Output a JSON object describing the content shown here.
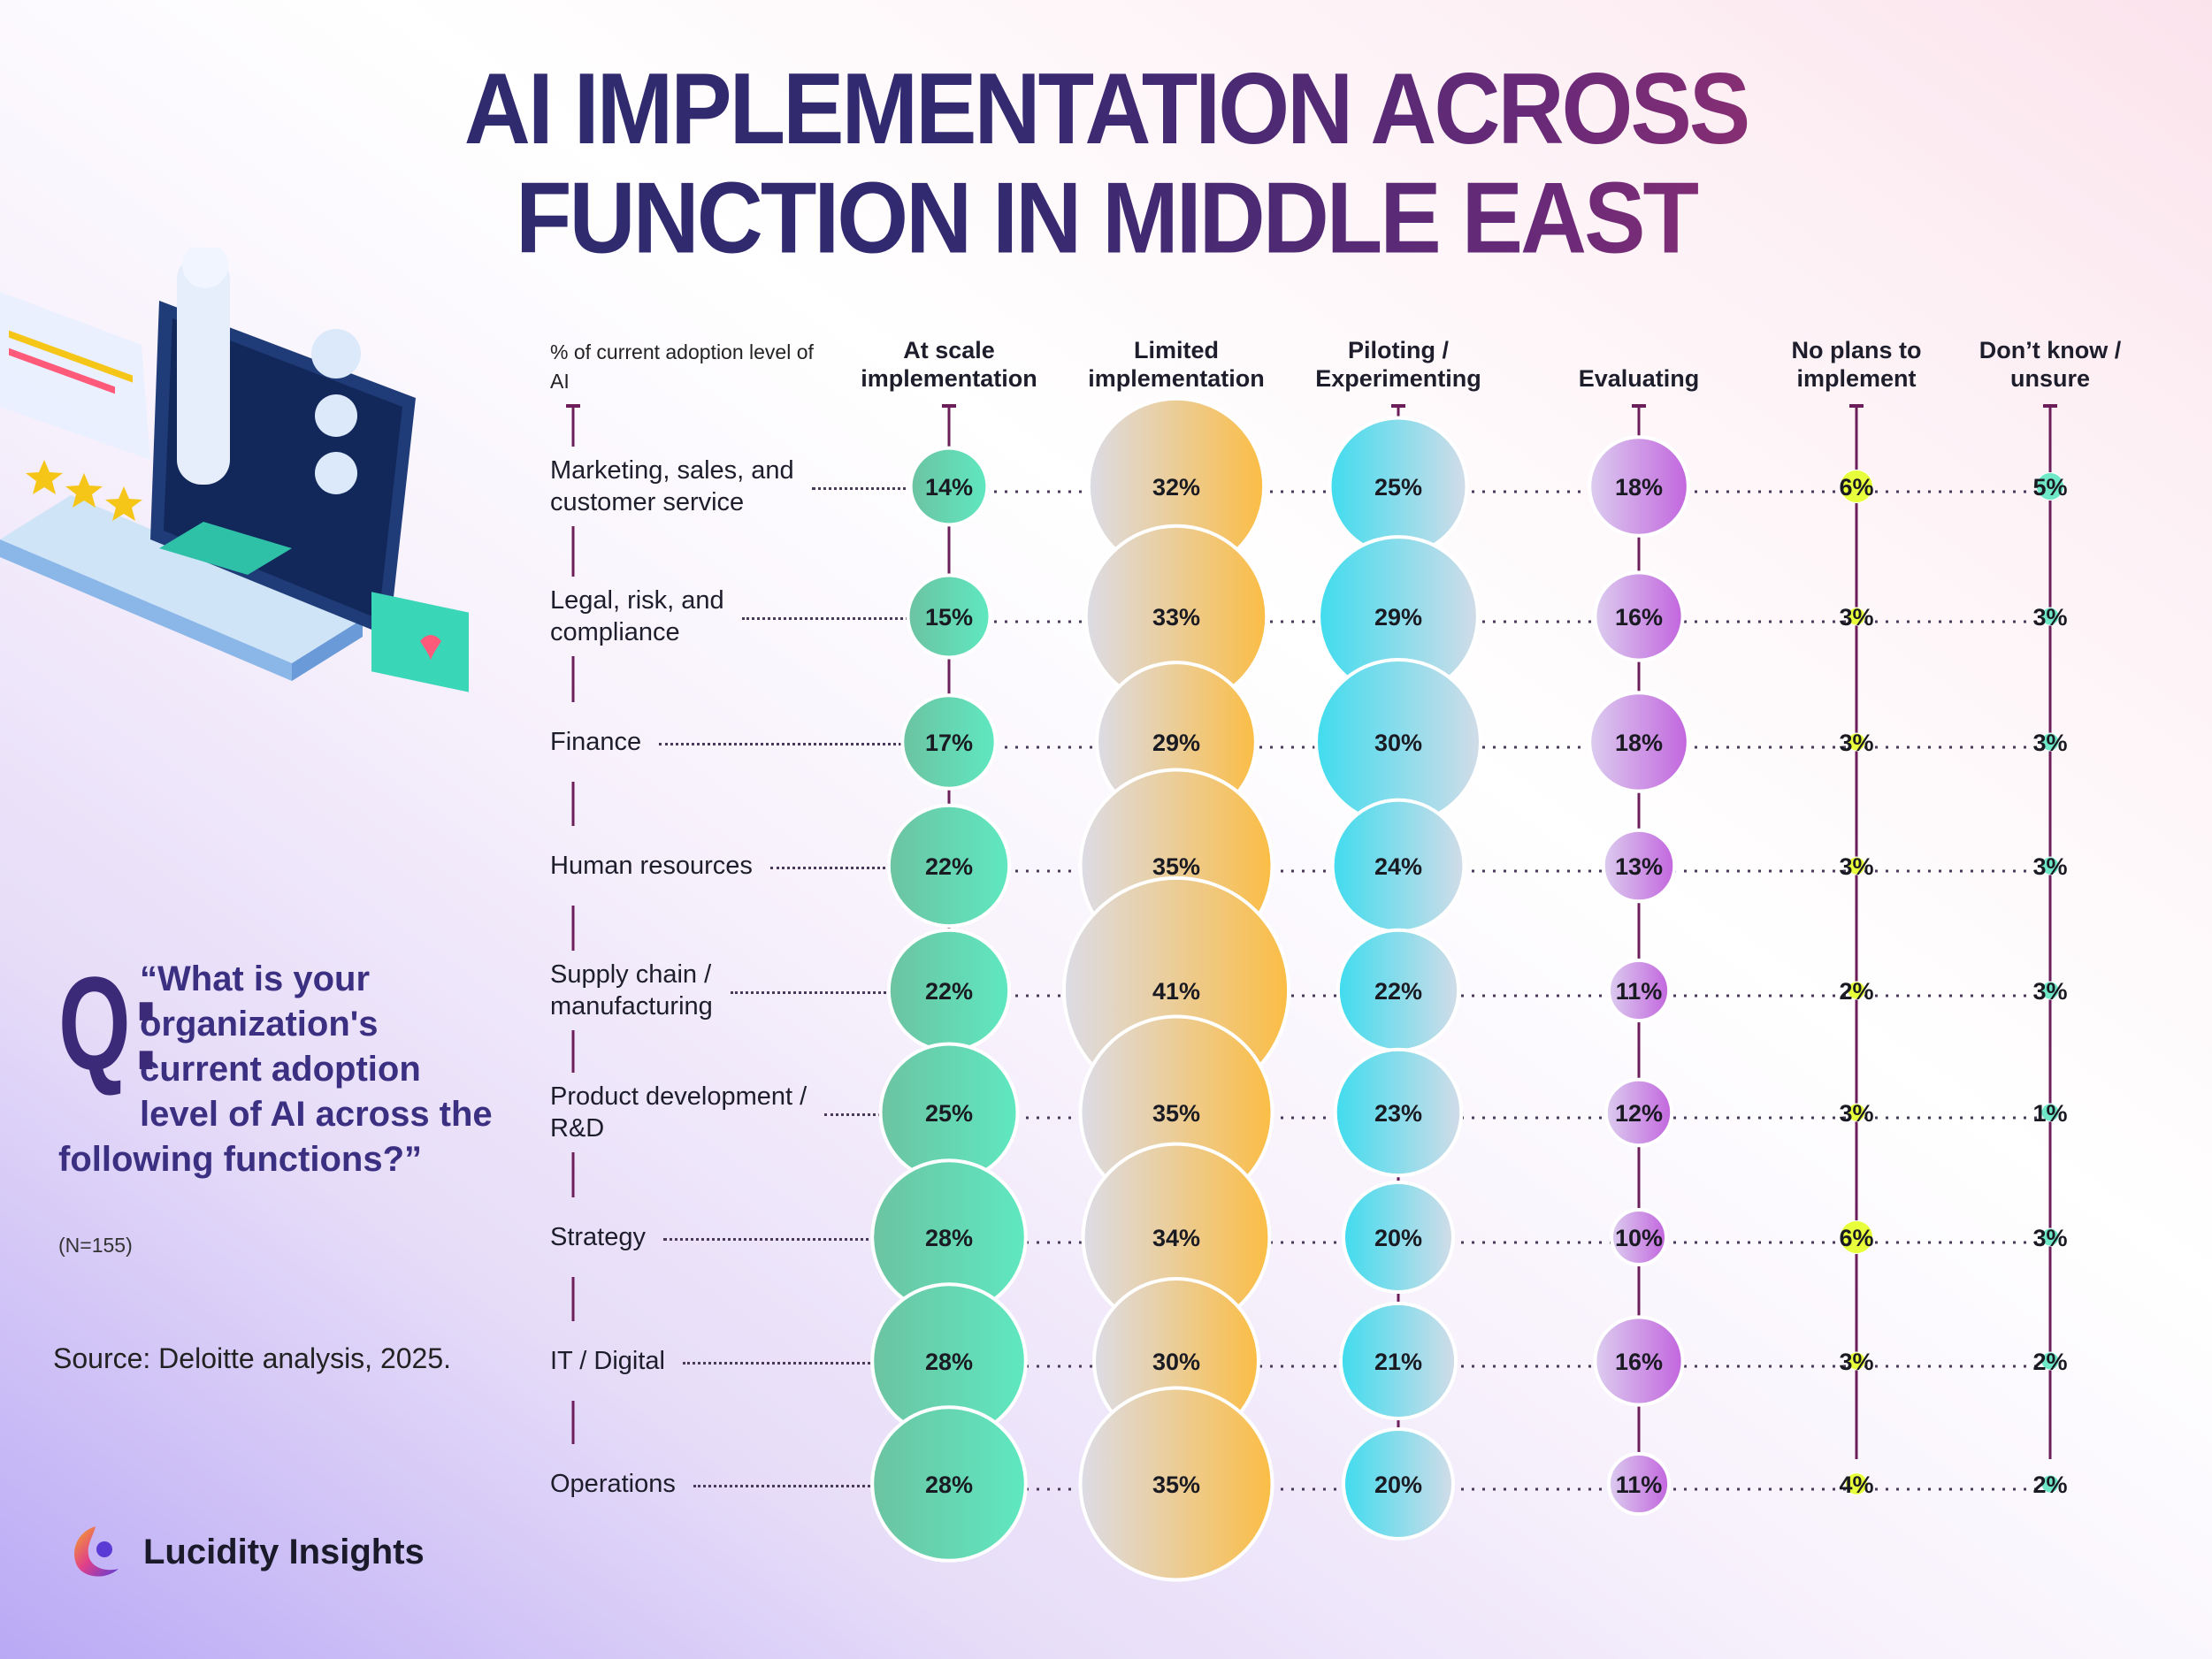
{
  "title": {
    "line1": "AI IMPLEMENTATION ACROSS",
    "line2": "FUNCTION IN MIDDLE EAST"
  },
  "question": {
    "mark": "Q:",
    "text": "“What is your organization's current adoption level of AI across the following functions?”",
    "n": "(N=155)"
  },
  "source": "Source: Deloitte analysis, 2025.",
  "brand": {
    "name": "Lucidity Insights"
  },
  "colors": {
    "at_scale": "#5fe8c0",
    "limited": "#fbbd45",
    "piloting": "#40dcee",
    "evaluating": "#c266de",
    "no_plans": "#e8ff3c",
    "dont_know": "#6fe8c8",
    "lines": "#6b1e5a"
  },
  "chart_data": {
    "type": "bubble-table",
    "axis_title": "% of current adoption level of AI",
    "series": [
      {
        "name": "At scale implementation",
        "values": [
          14,
          15,
          17,
          22,
          22,
          25,
          28,
          28,
          28
        ]
      },
      {
        "name": "Limited implementation",
        "values": [
          32,
          33,
          29,
          35,
          41,
          35,
          34,
          30,
          35
        ]
      },
      {
        "name": "Piloting / Experimenting",
        "values": [
          25,
          29,
          30,
          24,
          22,
          23,
          20,
          21,
          20
        ]
      },
      {
        "name": "Evaluating",
        "values": [
          18,
          16,
          18,
          13,
          11,
          12,
          10,
          16,
          11
        ]
      },
      {
        "name": "No plans to implement",
        "values": [
          6,
          3,
          3,
          3,
          2,
          3,
          6,
          3,
          4
        ]
      },
      {
        "name": "Don’t know / unsure",
        "values": [
          5,
          3,
          3,
          3,
          3,
          1,
          3,
          2,
          2
        ]
      }
    ],
    "categories": [
      "Marketing, sales, and\ncustomer service",
      "Legal, risk, and\ncompliance",
      "Finance",
      "Human resources",
      "Supply chain /\nmanufacturing",
      "Product development /\nR&D",
      "Strategy",
      "IT / Digital",
      "Operations"
    ],
    "unit": "%"
  }
}
